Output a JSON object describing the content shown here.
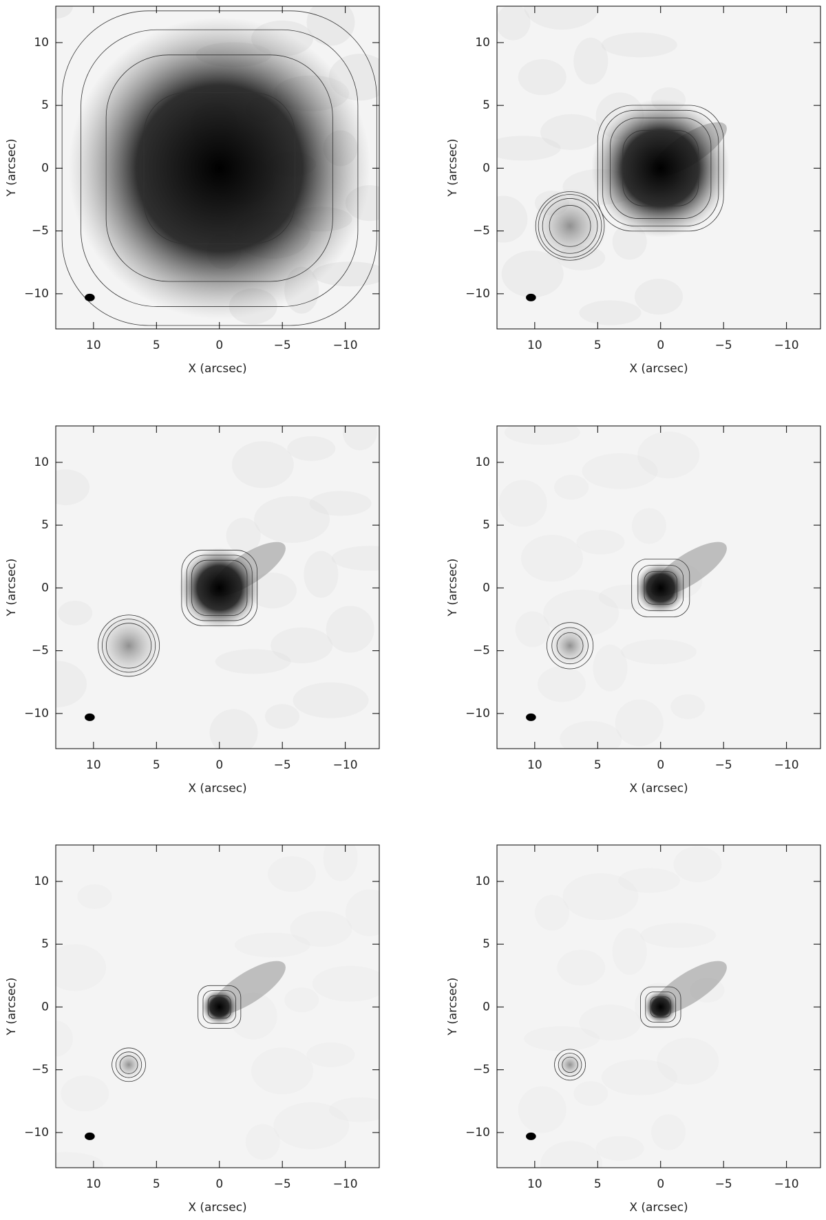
{
  "chart_data": [
    {
      "type": "image",
      "xlabel": "X (arcsec)",
      "ylabel": "Y (arcsec)",
      "xlim": [
        13,
        -12.7
      ],
      "ylim": [
        -12.8,
        12.9
      ],
      "xticks": [
        10,
        5,
        0,
        {
          "value": -5,
          "label": "−5"
        },
        {
          "value": -10,
          "label": "−10"
        }
      ],
      "yticks": [
        {
          "value": -10,
          "label": "−10"
        },
        {
          "value": -5,
          "label": "−5"
        },
        0,
        5,
        10
      ]
    },
    {
      "type": "image",
      "xlabel": "X (arcsec)",
      "ylabel": "Y (arcsec)",
      "xlim": [
        13,
        -12.7
      ],
      "ylim": [
        -12.8,
        12.9
      ],
      "xticks": [
        10,
        5,
        0,
        {
          "value": -5,
          "label": "−5"
        },
        {
          "value": -10,
          "label": "−10"
        }
      ],
      "yticks": [
        {
          "value": -10,
          "label": "−10"
        },
        {
          "value": -5,
          "label": "−5"
        },
        0,
        5,
        10
      ]
    },
    {
      "type": "image",
      "xlabel": "X (arcsec)",
      "ylabel": "Y (arcsec)",
      "xlim": [
        13,
        -12.7
      ],
      "ylim": [
        -12.8,
        12.9
      ],
      "xticks": [
        10,
        5,
        0,
        {
          "value": -5,
          "label": "−5"
        },
        {
          "value": -10,
          "label": "−10"
        }
      ],
      "yticks": [
        {
          "value": -10,
          "label": "−10"
        },
        {
          "value": -5,
          "label": "−5"
        },
        0,
        5,
        10
      ]
    },
    {
      "type": "image",
      "xlabel": "X (arcsec)",
      "ylabel": "Y (arcsec)",
      "xlim": [
        13,
        -12.7
      ],
      "ylim": [
        -12.8,
        12.9
      ],
      "xticks": [
        10,
        5,
        0,
        {
          "value": -5,
          "label": "−5"
        },
        {
          "value": -10,
          "label": "−10"
        }
      ],
      "yticks": [
        {
          "value": -10,
          "label": "−10"
        },
        {
          "value": -5,
          "label": "−5"
        },
        0,
        5,
        10
      ]
    },
    {
      "type": "image",
      "xlabel": "X (arcsec)",
      "ylabel": "Y (arcsec)",
      "xlim": [
        13,
        -12.7
      ],
      "ylim": [
        -12.8,
        12.9
      ],
      "xticks": [
        10,
        5,
        0,
        {
          "value": -5,
          "label": "−5"
        },
        {
          "value": -10,
          "label": "−10"
        }
      ],
      "yticks": [
        {
          "value": -10,
          "label": "−10"
        },
        {
          "value": -5,
          "label": "−5"
        },
        0,
        5,
        10
      ]
    },
    {
      "type": "image",
      "xlabel": "X (arcsec)",
      "ylabel": "Y (arcsec)",
      "xlim": [
        13,
        -12.7
      ],
      "ylim": [
        -12.8,
        12.9
      ],
      "xticks": [
        10,
        5,
        0,
        {
          "value": -5,
          "label": "−5"
        },
        {
          "value": -10,
          "label": "−10"
        }
      ],
      "yticks": [
        {
          "value": -10,
          "label": "−10"
        },
        {
          "value": -5,
          "label": "−5"
        },
        0,
        5,
        10
      ]
    }
  ]
}
